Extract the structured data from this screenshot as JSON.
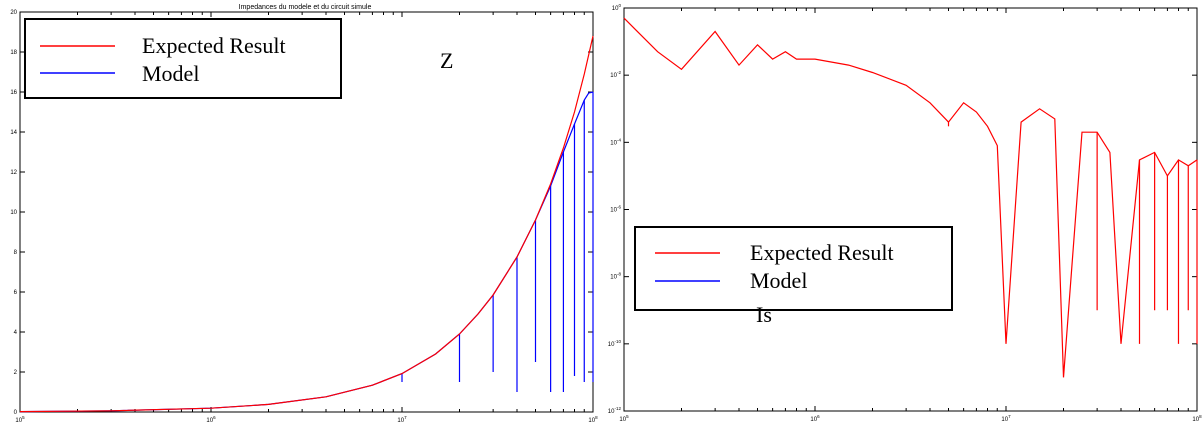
{
  "chart_data": [
    {
      "type": "line",
      "title": "Impedances du modele et du circuit simule",
      "annotation": "Z",
      "xscale": "log",
      "xlim": [
        100000,
        100000000
      ],
      "ylim": [
        0,
        20
      ],
      "x_ticks": [
        "10^5",
        "10^6",
        "10^7",
        "10^8"
      ],
      "y_ticks": [
        "0",
        "2",
        "4",
        "6",
        "8",
        "10",
        "12",
        "14",
        "16",
        "18",
        "20"
      ],
      "legend_position": "top-left",
      "grid": false,
      "series": [
        {
          "name": "Expected Result",
          "color": "#ff0000",
          "x": [
            100000,
            300000,
            1000000,
            2000000,
            4000000,
            7000000,
            10000000,
            15000000,
            20000000,
            25000000,
            30000000,
            40000000,
            50000000,
            60000000,
            70000000,
            80000000,
            90000000,
            100000000
          ],
          "y": [
            0.02,
            0.06,
            0.19,
            0.38,
            0.76,
            1.34,
            1.92,
            2.9,
            3.9,
            4.9,
            5.85,
            7.75,
            9.6,
            11.4,
            13.2,
            15.0,
            16.9,
            18.8
          ]
        },
        {
          "name": "Model",
          "color": "#0000ff",
          "x": [
            100000,
            300000,
            1000000,
            2000000,
            4000000,
            7000000,
            10000000,
            15000000,
            20000000,
            25000000,
            30000000,
            40000000,
            50000000,
            60000000,
            70000000,
            80000000,
            90000000,
            95000000,
            100000000
          ],
          "y": [
            0.02,
            0.06,
            0.19,
            0.38,
            0.76,
            1.34,
            1.92,
            2.9,
            3.9,
            4.9,
            5.85,
            7.75,
            9.6,
            11.3,
            13.0,
            14.4,
            15.6,
            15.95,
            16.0
          ],
          "dips": [
            {
              "x": 10000000,
              "y": 1.5
            },
            {
              "x": 20000000,
              "y": 1.5
            },
            {
              "x": 30000000,
              "y": 2.0
            },
            {
              "x": 40000000,
              "y": 1.0
            },
            {
              "x": 50000000,
              "y": 2.5
            },
            {
              "x": 60000000,
              "y": 1.0
            },
            {
              "x": 70000000,
              "y": 1.0
            },
            {
              "x": 80000000,
              "y": 1.8
            },
            {
              "x": 90000000,
              "y": 1.5
            },
            {
              "x": 100000000,
              "y": 1.5
            }
          ]
        }
      ]
    },
    {
      "type": "line",
      "annotation": "Is",
      "xscale": "log",
      "yscale": "log",
      "xlim": [
        100000,
        100000000
      ],
      "ylim": [
        1e-12,
        1
      ],
      "x_ticks": [
        "10^5",
        "10^6",
        "10^7",
        "10^8"
      ],
      "y_ticks": [
        "10^-12",
        "10^-10",
        "10^-8",
        "10^-6",
        "10^-4",
        "10^-2",
        "10^0"
      ],
      "legend_position": "center-left",
      "grid": false,
      "series": [
        {
          "name": "Expected Result",
          "color": "#ff0000",
          "x": [
            100000,
            150000,
            200000,
            300000,
            400000,
            500000,
            600000,
            700000,
            800000,
            1000000,
            1500000,
            2000000,
            3000000,
            4000000,
            5000000,
            6000000,
            7000000,
            8000000,
            9000000,
            10000000,
            12000000,
            15000000,
            18000000,
            20000000,
            25000000,
            30000000,
            35000000,
            40000000,
            50000000,
            60000000,
            70000000,
            80000000,
            90000000,
            100000000
          ],
          "y": [
            0.5,
            0.05,
            0.015,
            0.2,
            0.02,
            0.08,
            0.03,
            0.05,
            0.03,
            0.03,
            0.02,
            0.012,
            0.005,
            0.0015,
            0.0004,
            0.0015,
            0.0008,
            0.0003,
            8e-05,
            1e-10,
            0.0004,
            0.001,
            0.0005,
            1e-11,
            0.0002,
            0.0002,
            5e-05,
            1e-10,
            3e-05,
            5e-05,
            1e-05,
            3e-05,
            2e-05,
            3e-05
          ],
          "dips": [
            {
              "x": 5000000,
              "y": 0.0003
            },
            {
              "x": 10000000,
              "y": 1e-10
            },
            {
              "x": 20000000,
              "y": 1e-11
            },
            {
              "x": 30000000,
              "y": 1e-09
            },
            {
              "x": 40000000,
              "y": 1e-10
            },
            {
              "x": 50000000,
              "y": 1e-10
            },
            {
              "x": 60000000,
              "y": 1e-09
            },
            {
              "x": 70000000,
              "y": 1e-09
            },
            {
              "x": 80000000,
              "y": 1e-10
            },
            {
              "x": 90000000,
              "y": 1e-09
            },
            {
              "x": 100000000,
              "y": 1e-10
            }
          ]
        },
        {
          "name": "Model",
          "color": "#0000ff",
          "x": [],
          "y": []
        }
      ]
    }
  ]
}
